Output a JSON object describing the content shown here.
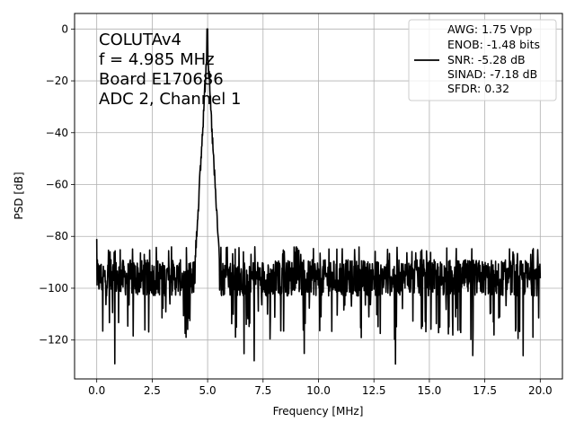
{
  "chart_data": {
    "type": "line",
    "xlabel": "Frequency [MHz]",
    "ylabel": "PSD [dB]",
    "xlim": [
      -1.0,
      21.0
    ],
    "ylim": [
      -135,
      6
    ],
    "xticks": [
      0.0,
      2.5,
      5.0,
      7.5,
      10.0,
      12.5,
      15.0,
      17.5,
      20.0
    ],
    "xtick_labels": [
      "0.0",
      "2.5",
      "5.0",
      "7.5",
      "10.0",
      "12.5",
      "15.0",
      "17.5",
      "20.0"
    ],
    "yticks": [
      0,
      -20,
      -40,
      -60,
      -80,
      -100,
      -120
    ],
    "ytick_labels": [
      "0",
      "−20",
      "−40",
      "−60",
      "−80",
      "−100",
      "−120"
    ],
    "grid": true,
    "legend_position": "top-right",
    "annotation_lines": [
      "COLUTAv4",
      "f = 4.985 MHz",
      "Board E170686",
      "ADC 2, Channel 1"
    ],
    "annotation_position": "top-left",
    "series": [
      {
        "color": "#000000",
        "legend_lines": [
          "AWG: 1.75 Vpp",
          "ENOB: -1.48 bits",
          "SNR: -5.28 dB",
          "SINAD: -7.18 dB",
          "SFDR: 0.32"
        ],
        "noise_floor_db": -96,
        "noise_min_db": -131,
        "noise_max_db": -84,
        "first_bin_db": -81,
        "peak_freq_mhz": 4.985,
        "peak_db": 0,
        "peak_base_db": -86,
        "x": [
          0.0,
          0.5,
          1.0,
          1.5,
          2.0,
          2.5,
          3.0,
          3.5,
          4.0,
          4.3,
          4.5,
          4.7,
          4.85,
          4.95,
          4.985,
          5.05,
          5.15,
          5.3,
          5.5,
          5.7,
          6.0,
          6.5,
          7.0,
          7.1,
          7.5,
          8.0,
          8.5,
          9.0,
          9.5,
          10.0,
          10.5,
          11.0,
          11.5,
          12.0,
          12.5,
          13.0,
          13.5,
          14.0,
          14.5,
          15.0,
          15.5,
          16.0,
          16.5,
          17.0,
          17.5,
          18.0,
          18.5,
          19.0,
          19.5,
          20.0
        ],
        "y": [
          -81,
          -96,
          -97,
          -95,
          -96,
          -97,
          -96,
          -95,
          -95,
          -90,
          -80,
          -55,
          -22,
          -8,
          0,
          -15,
          -40,
          -70,
          -90,
          -96,
          -97,
          -96,
          -97,
          -128,
          -97,
          -96,
          -97,
          -96,
          -97,
          -96,
          -97,
          -96,
          -97,
          -96,
          -97,
          -96,
          -97,
          -96,
          -97,
          -96,
          -97,
          -96,
          -97,
          -96,
          -97,
          -96,
          -97,
          -96,
          -97,
          -96
        ]
      }
    ]
  }
}
